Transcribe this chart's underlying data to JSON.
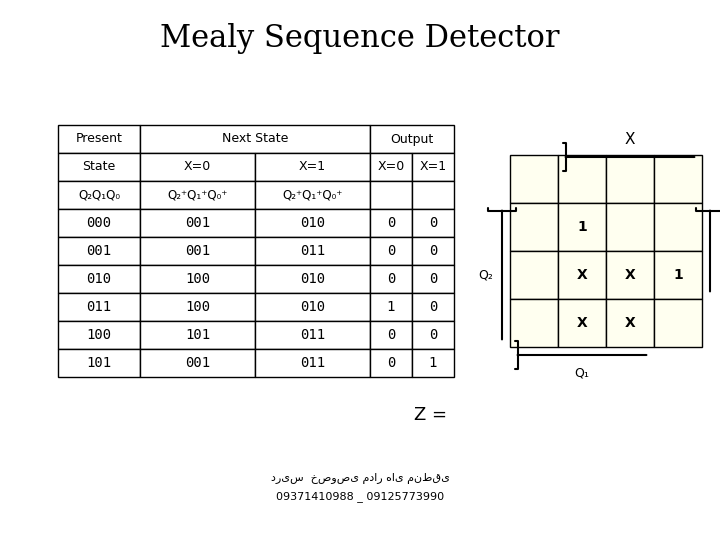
{
  "title": "Mealy Sequence Detector",
  "title_fontsize": 22,
  "bg_color": "#ffffff",
  "kmap_cell_color": "#fffff0",
  "kmap_contents": [
    [
      "",
      "",
      "",
      ""
    ],
    [
      "",
      "1",
      "",
      ""
    ],
    [
      "",
      "X",
      "X",
      "1"
    ],
    [
      "",
      "X",
      "X",
      ""
    ]
  ],
  "z_label": "Z =",
  "footer_line1": "دریس  خصوصی مدار های منطقی",
  "footer_line2": "09371410988 _ 09125773990",
  "table_data": [
    [
      "000",
      "001",
      "010",
      "0",
      "0"
    ],
    [
      "001",
      "001",
      "011",
      "0",
      "0"
    ],
    [
      "010",
      "100",
      "010",
      "0",
      "0"
    ],
    [
      "011",
      "100",
      "010",
      "1",
      "0"
    ],
    [
      "100",
      "101",
      "011",
      "0",
      "0"
    ],
    [
      "101",
      "001",
      "011",
      "0",
      "1"
    ]
  ]
}
